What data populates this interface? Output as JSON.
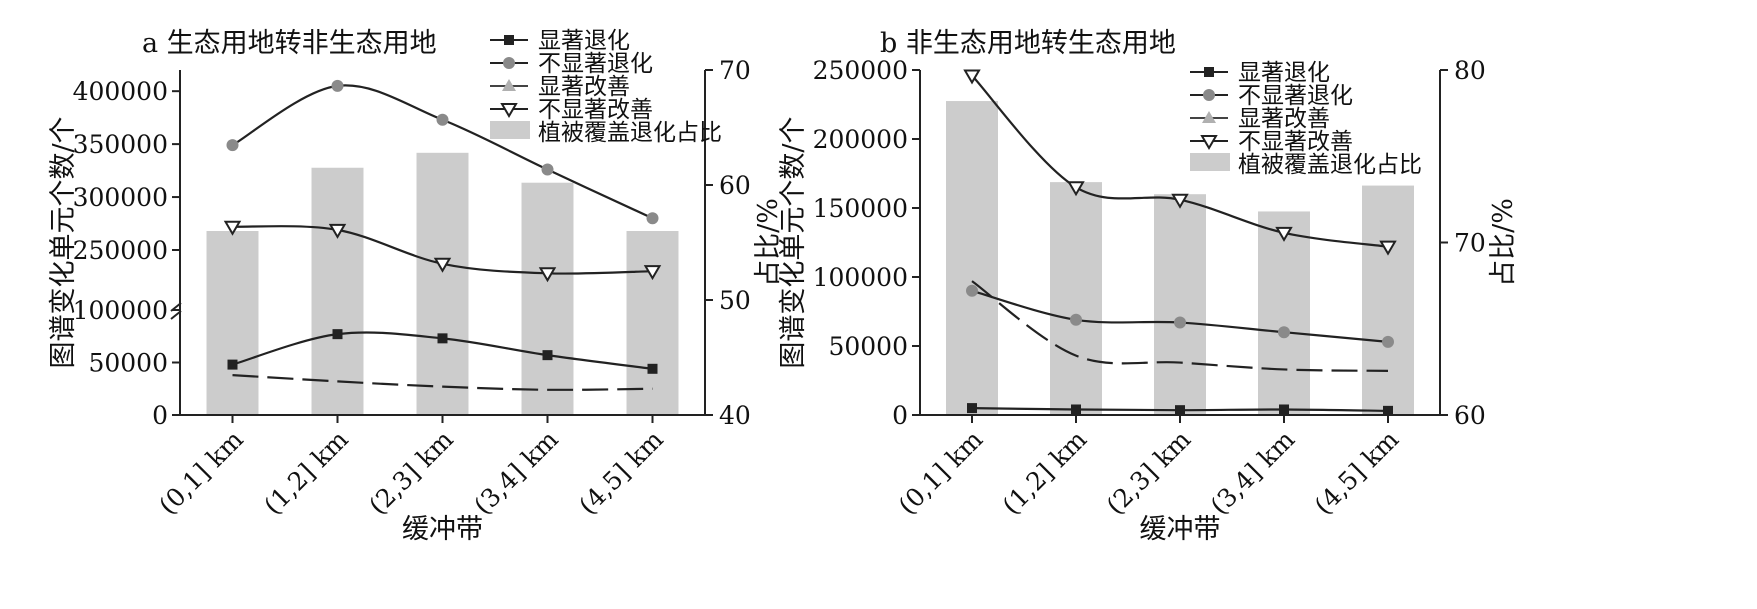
{
  "chart_data": [
    {
      "type": "bar",
      "title": "a 生态用地转非生态用地",
      "xlabel": "缓冲带",
      "ylabel": "图谱变化单元个数/个",
      "y2label": "占比/%",
      "categories": [
        "(0,1] km",
        "(1,2] km",
        "(2,3] km",
        "(3,4] km",
        "(4,5] km"
      ],
      "y_axis_break": true,
      "ylim_lower": [
        0,
        100000
      ],
      "ylim_upper": [
        200000,
        420000
      ],
      "y_ticks": [
        "0",
        "50000",
        "100000",
        "250000",
        "300000",
        "350000",
        "400000"
      ],
      "y2lim": [
        40,
        70
      ],
      "y2_ticks": [
        "40",
        "50",
        "60",
        "70"
      ],
      "legend_position": "top-right",
      "series": [
        {
          "name": "显著退化",
          "kind": "line",
          "marker": "square",
          "axis": "left",
          "values": [
            48000,
            77000,
            73000,
            57000,
            44000
          ]
        },
        {
          "name": "不显著退化",
          "kind": "line",
          "marker": "circle",
          "axis": "left",
          "values": [
            349000,
            405000,
            373000,
            326000,
            280000
          ]
        },
        {
          "name": "显著改善",
          "kind": "line",
          "marker": "triangle-up",
          "axis": "left",
          "values": [
            38000,
            32000,
            27000,
            24000,
            25000
          ]
        },
        {
          "name": "不显著改善",
          "kind": "line",
          "marker": "triangle-down",
          "axis": "left",
          "values": [
            272000,
            269000,
            237000,
            228000,
            230000
          ]
        },
        {
          "name": "植被覆盖退化占比",
          "kind": "bar",
          "axis": "right",
          "values": [
            56,
            61.5,
            62.8,
            60.2,
            56
          ]
        }
      ]
    },
    {
      "type": "bar",
      "title": "b 非生态用地转生态用地",
      "xlabel": "缓冲带",
      "ylabel": "图谱变化单元个数/个",
      "y2label": "占比/%",
      "categories": [
        "(0,1] km",
        "(1,2] km",
        "(2,3] km",
        "(3,4] km",
        "(4,5] km"
      ],
      "ylim": [
        0,
        250000
      ],
      "y_ticks": [
        "0",
        "50000",
        "100000",
        "150000",
        "200000",
        "250000"
      ],
      "y2lim": [
        60,
        80
      ],
      "y2_ticks": [
        "60",
        "70",
        "80"
      ],
      "legend_position": "top-right",
      "series": [
        {
          "name": "显著退化",
          "kind": "line",
          "marker": "square",
          "axis": "left",
          "values": [
            5000,
            4000,
            3500,
            4000,
            3000
          ]
        },
        {
          "name": "不显著退化",
          "kind": "line",
          "marker": "circle",
          "axis": "left",
          "values": [
            90000,
            69000,
            67000,
            60000,
            53000
          ]
        },
        {
          "name": "显著改善",
          "kind": "line",
          "marker": "triangle-up",
          "axis": "left",
          "values": [
            97000,
            43000,
            38000,
            33000,
            32000
          ]
        },
        {
          "name": "不显著改善",
          "kind": "line",
          "marker": "triangle-down",
          "axis": "left",
          "values": [
            246000,
            165000,
            156000,
            132000,
            122000
          ]
        },
        {
          "name": "植被覆盖退化占比",
          "kind": "bar",
          "axis": "right",
          "values": [
            78.2,
            73.5,
            72.8,
            71.8,
            73.3
          ]
        }
      ]
    }
  ]
}
